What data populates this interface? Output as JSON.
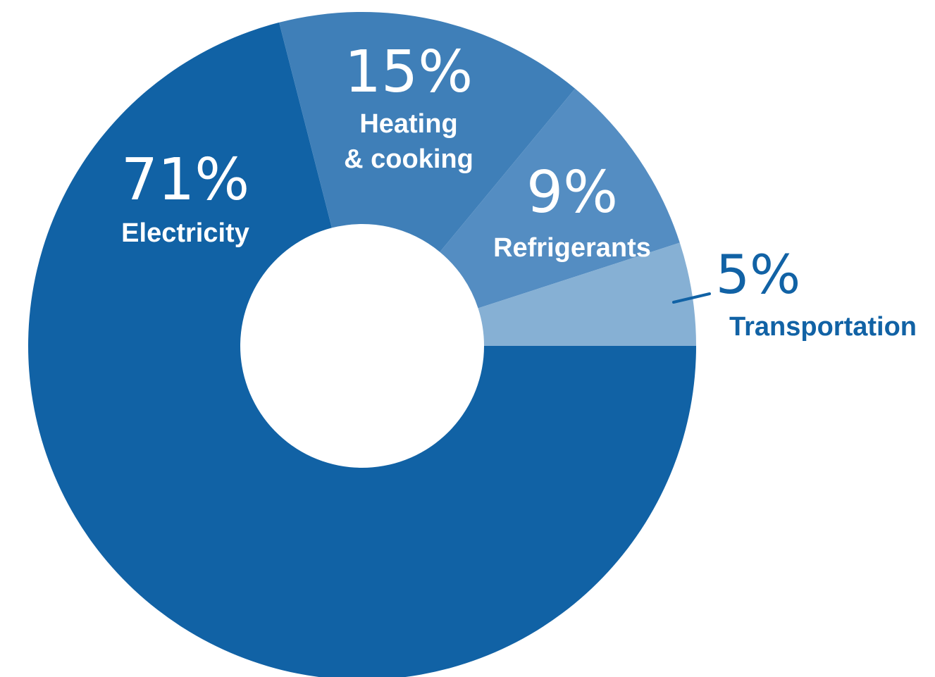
{
  "chart_data": {
    "type": "pie",
    "categories": [
      "Electricity",
      "Heating & cooking",
      "Refrigerants",
      "Transportation"
    ],
    "values": [
      71,
      15,
      9,
      5
    ],
    "value_labels": [
      "71%",
      "15%",
      "9%",
      "5%"
    ],
    "name_lines": [
      [
        "Electricity"
      ],
      [
        "Heating",
        "& cooking"
      ],
      [
        "Refrigerants"
      ],
      [
        "Transportation"
      ]
    ],
    "colors": [
      "#1162a5",
      "#3f7fb8",
      "#548dc2",
      "#86b0d4"
    ],
    "label_colors": [
      "#ffffff",
      "#ffffff",
      "#ffffff",
      "#1162a5"
    ],
    "donut": true,
    "title": "",
    "legend": "none"
  }
}
